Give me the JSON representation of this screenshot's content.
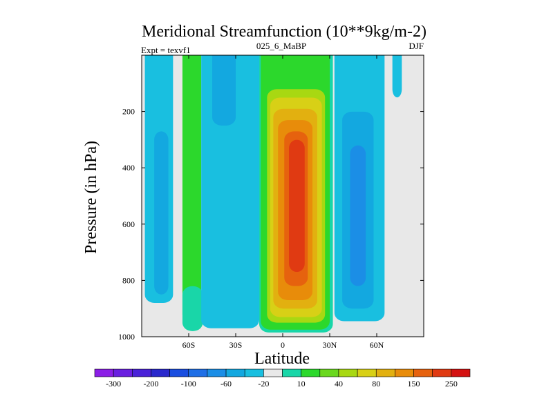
{
  "chart_data": {
    "type": "heatmap",
    "title": "Meridional Streamfunction (10**9kg/m-2)",
    "left_label": "Expt = texvf1",
    "center_label": "025_6_MaBP",
    "right_label": "DJF",
    "xlabel": "Latitude",
    "ylabel": "Pressure (in hPa)",
    "xlim": [
      -90,
      90
    ],
    "ylim": [
      1000,
      0
    ],
    "x_ticks": [
      {
        "value": -60,
        "label": "60S"
      },
      {
        "value": -30,
        "label": "30S"
      },
      {
        "value": 0,
        "label": "0"
      },
      {
        "value": 30,
        "label": "30N"
      },
      {
        "value": 60,
        "label": "60N"
      }
    ],
    "y_ticks": [
      {
        "value": 200,
        "label": "200"
      },
      {
        "value": 400,
        "label": "400"
      },
      {
        "value": 600,
        "label": "600"
      },
      {
        "value": 800,
        "label": "800"
      },
      {
        "value": 1000,
        "label": "1000"
      }
    ],
    "missing_color": "#e8e8e8",
    "colorbar": {
      "colors": [
        "#8b1ee6",
        "#6a1fe0",
        "#4a22d8",
        "#2a28cc",
        "#1a4ee0",
        "#1f6fe6",
        "#1b8ee6",
        "#13a8e0",
        "#19bfe0",
        "#e8e8e8",
        "#19d6a8",
        "#2cd82c",
        "#6ad81e",
        "#a8d812",
        "#d8d016",
        "#e2b010",
        "#e88c0a",
        "#e6620e",
        "#e03a12",
        "#d41212"
      ],
      "labels": [
        {
          "label": "-300",
          "boundary": 1
        },
        {
          "label": "-200",
          "boundary": 3
        },
        {
          "label": "-100",
          "boundary": 5
        },
        {
          "label": "-60",
          "boundary": 7
        },
        {
          "label": "-20",
          "boundary": 9
        },
        {
          "label": "10",
          "boundary": 11
        },
        {
          "label": "40",
          "boundary": 13
        },
        {
          "label": "80",
          "boundary": 15
        },
        {
          "label": "150",
          "boundary": 17
        },
        {
          "label": "250",
          "boundary": 19
        }
      ]
    },
    "regions": [
      {
        "name": "sh-outer-cell",
        "level": "#19bfe0",
        "lat": [
          -88,
          -70
        ],
        "p_top": 0,
        "p_bottom": 880
      },
      {
        "name": "sh-outer-cell-core",
        "level": "#13a8e0",
        "lat": [
          -82,
          -73
        ],
        "p_top": 300,
        "p_bottom": 850
      },
      {
        "name": "sh-ferrel-cell",
        "level": "#2cd82c",
        "lat": [
          -64,
          -52
        ],
        "p_top": 0,
        "p_bottom": 950
      },
      {
        "name": "sh-ferrel-edge",
        "level": "#19d6a8",
        "lat": [
          -64,
          -51
        ],
        "p_top": 850,
        "p_bottom": 980
      },
      {
        "name": "sh-mid-cell",
        "level": "#19bfe0",
        "lat": [
          -52,
          -15
        ],
        "p_top": 0,
        "p_bottom": 970
      },
      {
        "name": "sh-mid-core",
        "level": "#13a8e0",
        "lat": [
          -45,
          -30
        ],
        "p_top": 0,
        "p_bottom": 250
      },
      {
        "name": "hadley-cell-10",
        "level": "#19d6a8",
        "lat": [
          -15,
          32
        ],
        "p_top": 0,
        "p_bottom": 985
      },
      {
        "name": "hadley-cell-40",
        "level": "#2cd82c",
        "lat": [
          -14,
          30
        ],
        "p_top": 0,
        "p_bottom": 975
      },
      {
        "name": "hadley-cell-80",
        "level": "#a8d812",
        "lat": [
          -10,
          27
        ],
        "p_top": 150,
        "p_bottom": 950
      },
      {
        "name": "hadley-cell-120",
        "level": "#d8d016",
        "lat": [
          -8,
          25
        ],
        "p_top": 180,
        "p_bottom": 930
      },
      {
        "name": "hadley-cell-150",
        "level": "#e2b010",
        "lat": [
          -6,
          22
        ],
        "p_top": 220,
        "p_bottom": 900
      },
      {
        "name": "hadley-cell-200",
        "level": "#e88c0a",
        "lat": [
          -3,
          19
        ],
        "p_top": 260,
        "p_bottom": 870
      },
      {
        "name": "hadley-cell-250",
        "level": "#e6620e",
        "lat": [
          1,
          16
        ],
        "p_top": 300,
        "p_bottom": 820
      },
      {
        "name": "hadley-cell-core",
        "level": "#e03a12",
        "lat": [
          4,
          14
        ],
        "p_top": 330,
        "p_bottom": 770
      },
      {
        "name": "nh-ferrel-cell",
        "level": "#19bfe0",
        "lat": [
          33,
          65
        ],
        "p_top": 0,
        "p_bottom": 945
      },
      {
        "name": "nh-ferrel-core",
        "level": "#13a8e0",
        "lat": [
          38,
          58
        ],
        "p_top": 230,
        "p_bottom": 900
      },
      {
        "name": "nh-ferrel-inner",
        "level": "#1b8ee6",
        "lat": [
          43,
          53
        ],
        "p_top": 350,
        "p_bottom": 820
      },
      {
        "name": "nh-polar-strip",
        "level": "#19bfe0",
        "lat": [
          70,
          76
        ],
        "p_top": 0,
        "p_bottom": 150
      }
    ]
  }
}
